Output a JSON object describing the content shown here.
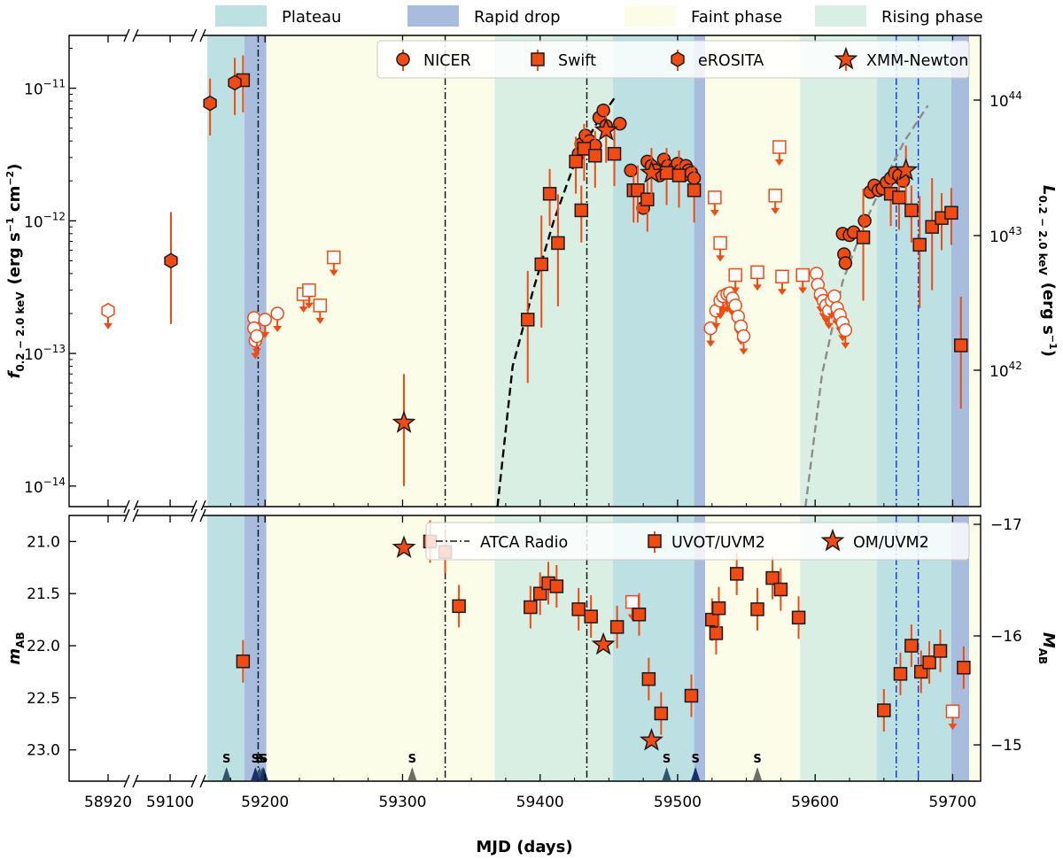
{
  "chart_data": {
    "type": "scatter",
    "xlabel": "MJD (days)",
    "x_ticks": [
      "58920",
      "59100",
      "59200",
      "59300",
      "59400",
      "59500",
      "59600",
      "59700"
    ],
    "x_range_main": [
      59158,
      59720
    ],
    "x_range_broken": [
      58900,
      59120
    ],
    "phases": [
      {
        "name": "Plateau",
        "color": "#bde0e3",
        "spans": [
          [
            59158,
            59185
          ],
          [
            59453,
            59512
          ],
          [
            59645,
            59699
          ]
        ]
      },
      {
        "name": "Rapid drop",
        "color": "#a8bcde",
        "spans": [
          [
            59185,
            59201
          ],
          [
            59512,
            59520
          ],
          [
            59699,
            59712
          ]
        ]
      },
      {
        "name": "Faint phase",
        "color": "#fcfde8",
        "spans": [
          [
            59201,
            59367
          ],
          [
            59520,
            59589
          ],
          [
            59712,
            59720
          ]
        ]
      },
      {
        "name": "Rising phase",
        "color": "#d9efe4",
        "spans": [
          [
            59367,
            59453
          ],
          [
            59589,
            59645
          ]
        ]
      }
    ],
    "radio_epochs_black": [
      59195,
      59331,
      59434
    ],
    "radio_epochs_blue": [
      59659,
      59675
    ],
    "top_panel": {
      "ylabel": "f_{0.2-2.0 keV} (erg s^-1 cm^-2)",
      "ylabel_main": "f",
      "ylabel_sub": "0.2 − 2.0 keV",
      "ylabel_units": "(erg s",
      "ylabel_units_tail": " cm",
      "ylabel_units_close": ")",
      "ylabel_right": "L_{0.2-2.0 keV} (erg s^-1)",
      "ylabel_right_main": "L",
      "ylabel_right_sub": "0.2 − 2.0 keV",
      "ylabel_right_units": "(erg s",
      "ylabel_right_units_close": ")",
      "sup_neg1": "−1",
      "sup_neg2": "−2",
      "yscale": "log",
      "ylim": [
        7e-15,
        2.5e-11
      ],
      "y_ticks": [
        "10^-14",
        "10^-13",
        "10^-12",
        "10^-11"
      ],
      "y_ticks_right": [
        "10^42",
        "10^43",
        "10^44"
      ],
      "tick_base": "10",
      "tick_exp": [
        "−14",
        "−13",
        "−12",
        "−11"
      ],
      "tick_exp_right": [
        "42",
        "43",
        "44"
      ],
      "legend": [
        "NICER",
        "Swift",
        "eROSITA",
        "XMM-Newton"
      ],
      "series": [
        {
          "name": "NICER",
          "marker": "circle",
          "points": [
            [
              59428,
              3.2e-12
            ],
            [
              59430,
              3.8e-12
            ],
            [
              59433,
              4.4e-12
            ],
            [
              59436,
              4e-12
            ],
            [
              59440,
              3.7e-12
            ],
            [
              59443,
              6e-12
            ],
            [
              59446,
              6.8e-12
            ],
            [
              59448,
              5.2e-12
            ],
            [
              59458,
              5.4e-12
            ],
            [
              59466,
              2.4e-12
            ],
            [
              59470,
              1.7e-12
            ],
            [
              59475,
              1.25e-12
            ],
            [
              59478,
              2.8e-12
            ],
            [
              59481,
              2.6e-12
            ],
            [
              59484,
              2.4e-12
            ],
            [
              59487,
              2.2e-12
            ],
            [
              59490,
              2.9e-12
            ],
            [
              59493,
              2.6e-12
            ],
            [
              59496,
              2.3e-12
            ],
            [
              59498,
              2.5e-12
            ],
            [
              59500,
              2.7e-12
            ],
            [
              59502,
              2.4e-12
            ],
            [
              59504,
              2.2e-12
            ],
            [
              59506,
              2.6e-12
            ],
            [
              59508,
              2.4e-12
            ],
            [
              59510,
              2.3e-12
            ],
            [
              59512,
              2.1e-12
            ],
            [
              59620,
              8e-13
            ],
            [
              59621,
              5.6e-13
            ],
            [
              59622,
              4.8e-13
            ],
            [
              59625,
              7.8e-13
            ],
            [
              59628,
              8.2e-13
            ],
            [
              59636,
              1e-12
            ],
            [
              59640,
              1.65e-12
            ],
            [
              59643,
              1.85e-12
            ],
            [
              59646,
              1.7e-12
            ],
            [
              59649,
              1.75e-12
            ],
            [
              59652,
              1.95e-12
            ],
            [
              59655,
              2.1e-12
            ],
            [
              59658,
              2.3e-12
            ],
            [
              59661,
              2.2e-12
            ],
            [
              59664,
              2e-12
            ]
          ]
        },
        {
          "name": "Swift",
          "marker": "square",
          "points": [
            [
              59184,
              1.15e-11
            ],
            [
              59391,
              1.8e-13
            ],
            [
              59401,
              4.7e-13
            ],
            [
              59407,
              1.6e-12
            ],
            [
              59413,
              6.8e-13
            ],
            [
              59426,
              2.8e-12
            ],
            [
              59430,
              1.2e-12
            ],
            [
              59432,
              3.5e-12
            ],
            [
              59440,
              3.1e-12
            ],
            [
              59454,
              3.2e-12
            ],
            [
              59468,
              1.7e-12
            ],
            [
              59471,
              1.7e-12
            ],
            [
              59478,
              1.45e-12
            ],
            [
              59492,
              2.3e-12
            ],
            [
              59501,
              2.2e-12
            ],
            [
              59512,
              1.7e-12
            ],
            [
              59635,
              7.5e-13
            ],
            [
              59655,
              1.6e-12
            ],
            [
              59661,
              1.5e-12
            ],
            [
              59670,
              1.2e-12
            ],
            [
              59676,
              6.6e-13
            ],
            [
              59685,
              9e-13
            ],
            [
              59692,
              1.05e-12
            ],
            [
              59699,
              1.15e-12
            ],
            [
              59706,
              1.15e-13
            ]
          ]
        },
        {
          "name": "eROSITA",
          "marker": "hexagon",
          "points": [
            [
              59101,
              5e-13
            ],
            [
              59160,
              7.7e-12
            ],
            [
              59178,
              1.1e-11
            ]
          ]
        },
        {
          "name": "XMM-Newton",
          "marker": "star",
          "points": [
            [
              59301,
              3e-14
            ],
            [
              59448,
              4.8e-12
            ],
            [
              59481,
              2.3e-12
            ],
            [
              59666,
              2.4e-12
            ]
          ]
        }
      ],
      "upper_limits": [
        {
          "marker": "hexagon",
          "points": [
            [
              58920,
              2.1e-13
            ]
          ]
        },
        {
          "marker": "circle",
          "points": [
            [
              59192,
              1.85e-13
            ],
            [
              59192,
              1.55e-13
            ],
            [
              59193,
              1.25e-13
            ],
            [
              59194,
              1.35e-13
            ],
            [
              59200,
              1.8e-13
            ],
            [
              59209,
              2e-13
            ],
            [
              59524,
              1.55e-13
            ],
            [
              59528,
              2.1e-13
            ],
            [
              59531,
              2.5e-13
            ],
            [
              59533,
              2.7e-13
            ],
            [
              59536,
              2.8e-13
            ],
            [
              59538,
              2.85e-13
            ],
            [
              59540,
              2.6e-13
            ],
            [
              59542,
              2.3e-13
            ],
            [
              59544,
              1.9e-13
            ],
            [
              59546,
              1.6e-13
            ],
            [
              59548,
              1.35e-13
            ],
            [
              59601,
              4e-13
            ],
            [
              59602,
              3.3e-13
            ],
            [
              59604,
              2.8e-13
            ],
            [
              59606,
              2.5e-13
            ],
            [
              59608,
              2.3e-13
            ],
            [
              59610,
              2.1e-13
            ],
            [
              59612,
              2.5e-13
            ],
            [
              59614,
              2.7e-13
            ],
            [
              59616,
              2.2e-13
            ],
            [
              59618,
              1.95e-13
            ],
            [
              59620,
              1.7e-13
            ],
            [
              59622,
              1.5e-13
            ]
          ]
        },
        {
          "marker": "square",
          "points": [
            [
              59228,
              2.8e-13
            ],
            [
              59232,
              3e-13
            ],
            [
              59240,
              2.3e-13
            ],
            [
              59250,
              5.3e-13
            ],
            [
              59527,
              1.5e-12
            ],
            [
              59531,
              6.8e-13
            ],
            [
              59542,
              3.9e-13
            ],
            [
              59558,
              4.1e-13
            ],
            [
              59571,
              1.55e-12
            ],
            [
              59574,
              3.6e-12
            ],
            [
              59576,
              3.8e-13
            ],
            [
              59591,
              3.9e-13
            ]
          ]
        }
      ],
      "rise_model_1": {
        "x": [
          59369,
          59380,
          59395,
          59410,
          59425,
          59440,
          59455
        ],
        "y": [
          7e-15,
          8e-14,
          3e-13,
          1e-12,
          2.7e-12,
          5.2e-12,
          8.7e-12
        ]
      },
      "rise_model_2": {
        "x": [
          59593,
          59605,
          59620,
          59635,
          59650,
          59665,
          59682
        ],
        "y": [
          7e-15,
          7e-14,
          3.5e-13,
          9e-13,
          2e-12,
          4e-12,
          7.4e-12
        ]
      }
    },
    "bottom_panel": {
      "ylabel": "m_AB",
      "ylabel_main": "m",
      "ylabel_sub": "AB",
      "ylabel_right": "M_AB",
      "ylabel_right_main": "M",
      "ylabel_right_sub": "AB",
      "ylim_inverted": [
        23.3,
        20.75
      ],
      "y_ticks": [
        "21.0",
        "21.5",
        "22.0",
        "22.5",
        "23.0"
      ],
      "y_ticks_right": [
        "−17",
        "−16",
        "−15"
      ],
      "legend": [
        "ATCA Radio",
        "UVOT/UVM2",
        "OM/UVM2"
      ],
      "series": [
        {
          "name": "UVOT/UVM2",
          "marker": "square",
          "points": [
            [
              59184,
              22.15
            ],
            [
              59320,
              21.0
            ],
            [
              59331,
              21.1
            ],
            [
              59341,
              21.62
            ],
            [
              59393,
              21.63
            ],
            [
              59400,
              21.5
            ],
            [
              59406,
              21.4
            ],
            [
              59412,
              21.43
            ],
            [
              59428,
              21.65
            ],
            [
              59437,
              21.72
            ],
            [
              59456,
              21.82
            ],
            [
              59472,
              21.7
            ],
            [
              59479,
              22.32
            ],
            [
              59488,
              22.65
            ],
            [
              59510,
              22.48
            ],
            [
              59525,
              21.75
            ],
            [
              59528,
              21.88
            ],
            [
              59530,
              21.64
            ],
            [
              59543,
              21.31
            ],
            [
              59558,
              21.65
            ],
            [
              59569,
              21.35
            ],
            [
              59575,
              21.46
            ],
            [
              59588,
              21.73
            ],
            [
              59650,
              22.62
            ],
            [
              59662,
              22.27
            ],
            [
              59670,
              22.0
            ],
            [
              59677,
              22.25
            ],
            [
              59683,
              22.16
            ],
            [
              59691,
              22.05
            ],
            [
              59708,
              22.21
            ]
          ]
        },
        {
          "name": "OM/UVM2",
          "marker": "star",
          "points": [
            [
              59301,
              21.06
            ],
            [
              59446,
              21.99
            ],
            [
              59481,
              22.91
            ]
          ]
        }
      ],
      "upper_limits": [
        {
          "marker": "square",
          "points": [
            [
              59467,
              21.58
            ],
            [
              59700,
              22.63
            ]
          ]
        }
      ],
      "swift_marks": {
        "label": "S",
        "slate": [
          59172,
          59196,
          59198,
          59492
        ],
        "navy": [
          59193,
          59199,
          59513
        ],
        "gray": [
          59307,
          59558
        ]
      }
    },
    "colors": {
      "data": "#f24a10",
      "edge": "#1a1a1a",
      "radio_black": "#1a1a1a",
      "radio_blue": "#1f3fdd",
      "model_black": "#000000",
      "model_gray": "#8c8c8c",
      "swift_slate": "#2f5766",
      "swift_navy": "#1b2f6a",
      "swift_gray": "#6b7060"
    }
  }
}
